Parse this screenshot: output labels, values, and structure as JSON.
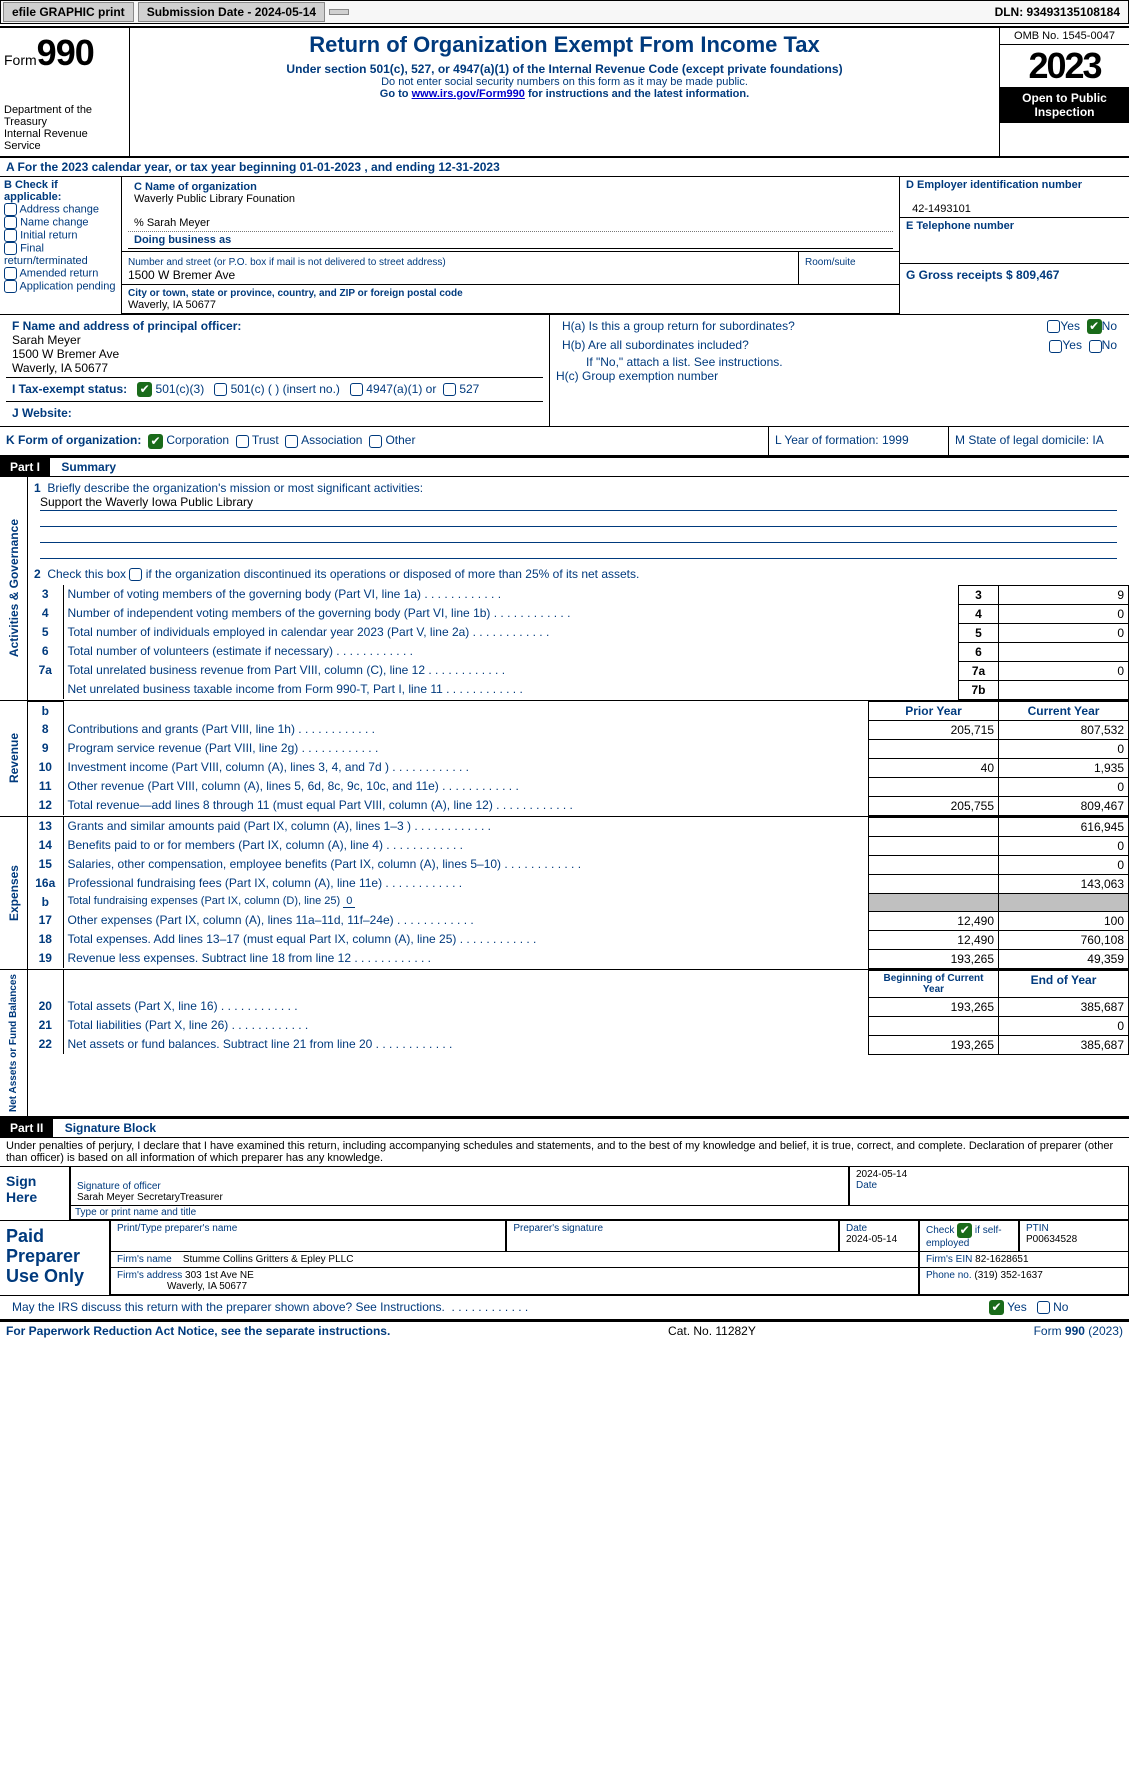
{
  "header": {
    "efile": "efile GRAPHIC print",
    "submission_label": "Submission Date - 2024-05-14",
    "dln_label": "DLN: 93493135108184"
  },
  "title_block": {
    "form_word": "Form",
    "form_num": "990",
    "dept1": "Department of the Treasury",
    "dept2": "Internal Revenue Service",
    "main_title": "Return of Organization Exempt From Income Tax",
    "sub1": "Under section 501(c), 527, or 4947(a)(1) of the Internal Revenue Code (except private foundations)",
    "sub2": "Do not enter social security numbers on this form as it may be made public.",
    "sub3_pre": "Go to ",
    "sub3_link": "www.irs.gov/Form990",
    "sub3_post": " for instructions and the latest information.",
    "omb": "OMB No. 1545-0047",
    "year": "2023",
    "open": "Open to Public Inspection"
  },
  "row_a": "A For the 2023 calendar year, or tax year beginning 01-01-2023   , and ending 12-31-2023",
  "col_b": {
    "header": "B Check if applicable:",
    "items": [
      "Address change",
      "Name change",
      "Initial return",
      "Final return/terminated",
      "Amended return",
      "Application pending"
    ]
  },
  "col_c": {
    "name_label": "C Name of organization",
    "name": "Waverly Public Library Founation",
    "care_of": "% Sarah Meyer",
    "dba_label": "Doing business as",
    "addr_label": "Number and street (or P.O. box if mail is not delivered to street address)",
    "room_label": "Room/suite",
    "addr": "1500 W Bremer Ave",
    "city_label": "City or town, state or province, country, and ZIP or foreign postal code",
    "city": "Waverly, IA  50677"
  },
  "col_d": {
    "ein_label": "D Employer identification number",
    "ein": "42-1493101",
    "tel_label": "E Telephone number",
    "gross_label": "G Gross receipts $ 809,467"
  },
  "row_f": {
    "label": "F  Name and address of principal officer:",
    "name": "Sarah Meyer",
    "addr1": "1500 W Bremer Ave",
    "addr2": "Waverly, IA  50677"
  },
  "row_h": {
    "ha": "H(a)  Is this a group return for subordinates?",
    "hb": "H(b)  Are all subordinates included?",
    "hb_note": "If \"No,\" attach a list. See instructions.",
    "hc": "H(c)  Group exemption number",
    "yes": "Yes",
    "no": "No"
  },
  "row_i": {
    "label": "I  Tax-exempt status:",
    "opt1": "501(c)(3)",
    "opt2": "501(c) (  ) (insert no.)",
    "opt3": "4947(a)(1) or",
    "opt4": "527"
  },
  "row_j": {
    "label": "J  Website:"
  },
  "row_k": {
    "label": "K Form of organization:",
    "opts": [
      "Corporation",
      "Trust",
      "Association",
      "Other"
    ]
  },
  "row_l": {
    "label": "L Year of formation: 1999"
  },
  "row_m": {
    "label": "M State of legal domicile: IA"
  },
  "part1": {
    "tag": "Part I",
    "title": "Summary"
  },
  "governance": {
    "vlabel": "Activities & Governance",
    "l1_label": "Briefly describe the organization's mission or most significant activities:",
    "l1_text": "Support the Waverly Iowa Public Library",
    "l2": "Check this box      if the organization discontinued its operations or disposed of more than 25% of its net assets.",
    "rows": [
      {
        "n": "3",
        "d": "Number of voting members of the governing body (Part VI, line 1a)",
        "i": "3",
        "v": "9"
      },
      {
        "n": "4",
        "d": "Number of independent voting members of the governing body (Part VI, line 1b)",
        "i": "4",
        "v": "0"
      },
      {
        "n": "5",
        "d": "Total number of individuals employed in calendar year 2023 (Part V, line 2a)",
        "i": "5",
        "v": "0"
      },
      {
        "n": "6",
        "d": "Total number of volunteers (estimate if necessary)",
        "i": "6",
        "v": ""
      },
      {
        "n": "7a",
        "d": "Total unrelated business revenue from Part VIII, column (C), line 12",
        "i": "7a",
        "v": "0"
      },
      {
        "n": "",
        "d": "Net unrelated business taxable income from Form 990-T, Part I, line 11",
        "i": "7b",
        "v": ""
      }
    ]
  },
  "revenue": {
    "vlabel": "Revenue",
    "head_b": "b",
    "head_prior": "Prior Year",
    "head_current": "Current Year",
    "rows": [
      {
        "n": "8",
        "d": "Contributions and grants (Part VIII, line 1h)",
        "p": "205,715",
        "c": "807,532"
      },
      {
        "n": "9",
        "d": "Program service revenue (Part VIII, line 2g)",
        "p": "",
        "c": "0"
      },
      {
        "n": "10",
        "d": "Investment income (Part VIII, column (A), lines 3, 4, and 7d )",
        "p": "40",
        "c": "1,935"
      },
      {
        "n": "11",
        "d": "Other revenue (Part VIII, column (A), lines 5, 6d, 8c, 9c, 10c, and 11e)",
        "p": "",
        "c": "0"
      },
      {
        "n": "12",
        "d": "Total revenue—add lines 8 through 11 (must equal Part VIII, column (A), line 12)",
        "p": "205,755",
        "c": "809,467"
      }
    ]
  },
  "expenses": {
    "vlabel": "Expenses",
    "rows": [
      {
        "n": "13",
        "d": "Grants and similar amounts paid (Part IX, column (A), lines 1–3 )",
        "p": "",
        "c": "616,945"
      },
      {
        "n": "14",
        "d": "Benefits paid to or for members (Part IX, column (A), line 4)",
        "p": "",
        "c": "0"
      },
      {
        "n": "15",
        "d": "Salaries, other compensation, employee benefits (Part IX, column (A), lines 5–10)",
        "p": "",
        "c": "0"
      },
      {
        "n": "16a",
        "d": "Professional fundraising fees (Part IX, column (A), line 11e)",
        "p": "",
        "c": "143,063"
      }
    ],
    "l16b_label": "Total fundraising expenses (Part IX, column (D), line 25)",
    "l16b_val": "0",
    "rows2": [
      {
        "n": "17",
        "d": "Other expenses (Part IX, column (A), lines 11a–11d, 11f–24e)",
        "p": "12,490",
        "c": "100"
      },
      {
        "n": "18",
        "d": "Total expenses. Add lines 13–17 (must equal Part IX, column (A), line 25)",
        "p": "12,490",
        "c": "760,108"
      },
      {
        "n": "19",
        "d": "Revenue less expenses. Subtract line 18 from line 12",
        "p": "193,265",
        "c": "49,359"
      }
    ]
  },
  "netassets": {
    "vlabel": "Net Assets or Fund Balances",
    "head_begin": "Beginning of Current Year",
    "head_end": "End of Year",
    "rows": [
      {
        "n": "20",
        "d": "Total assets (Part X, line 16)",
        "p": "193,265",
        "c": "385,687"
      },
      {
        "n": "21",
        "d": "Total liabilities (Part X, line 26)",
        "p": "",
        "c": "0"
      },
      {
        "n": "22",
        "d": "Net assets or fund balances. Subtract line 21 from line 20",
        "p": "193,265",
        "c": "385,687"
      }
    ]
  },
  "part2": {
    "tag": "Part II",
    "title": "Signature Block"
  },
  "penalties": "Under penalties of perjury, I declare that I have examined this return, including accompanying schedules and statements, and to the best of my knowledge and belief, it is true, correct, and complete. Declaration of preparer (other than officer) is based on all information of which preparer has any knowledge.",
  "sign": {
    "label": "Sign Here",
    "sig_label": "Signature of officer",
    "date_label": "Date",
    "date": "2024-05-14",
    "name": "Sarah Meyer SecretaryTreasurer",
    "type_label": "Type or print name and title"
  },
  "paid": {
    "label": "Paid Preparer Use Only",
    "col1": "Print/Type preparer's name",
    "col2": "Preparer's signature",
    "col3_label": "Date",
    "col3": "2024-05-14",
    "col4_label": "Check",
    "col4_sub": "if self-employed",
    "col5_label": "PTIN",
    "col5": "P00634528",
    "firm_name_label": "Firm's name",
    "firm_name": "Stumme Collins Gritters & Epley PLLC",
    "firm_ein_label": "Firm's EIN",
    "firm_ein": "82-1628651",
    "firm_addr_label": "Firm's address",
    "firm_addr1": "303 1st Ave NE",
    "firm_addr2": "Waverly, IA  50677",
    "phone_label": "Phone no.",
    "phone": "(319) 352-1637"
  },
  "discuss": "May the IRS discuss this return with the preparer shown above? See Instructions.",
  "footer": {
    "left": "For Paperwork Reduction Act Notice, see the separate instructions.",
    "center": "Cat. No. 11282Y",
    "right_pre": "Form ",
    "right_bold": "990",
    "right_post": " (2023)"
  }
}
